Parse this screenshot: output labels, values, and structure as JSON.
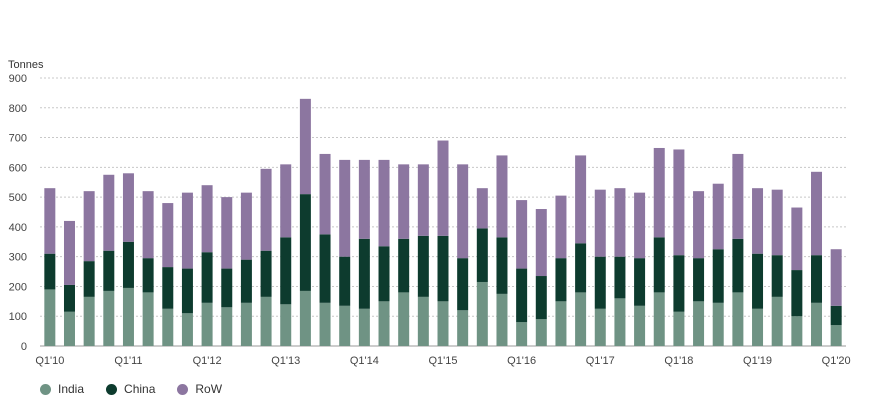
{
  "chart_data": {
    "type": "bar",
    "stacked": true,
    "ylabel": "Tonnes",
    "ylim": [
      0,
      900
    ],
    "yticks": [
      0,
      100,
      200,
      300,
      400,
      500,
      600,
      700,
      800,
      900
    ],
    "grid": true,
    "legend_position": "bottom-left",
    "categories": [
      "Q1'10",
      "Q2'10",
      "Q3'10",
      "Q4'10",
      "Q1'11",
      "Q2'11",
      "Q3'11",
      "Q4'11",
      "Q1'12",
      "Q2'12",
      "Q3'12",
      "Q4'12",
      "Q1'13",
      "Q2'13",
      "Q3'13",
      "Q4'13",
      "Q1'14",
      "Q2'14",
      "Q3'14",
      "Q4'14",
      "Q1'15",
      "Q2'15",
      "Q3'15",
      "Q4'15",
      "Q1'16",
      "Q2'16",
      "Q3'16",
      "Q4'16",
      "Q1'17",
      "Q2'17",
      "Q3'17",
      "Q4'17",
      "Q1'18",
      "Q2'18",
      "Q3'18",
      "Q4'18",
      "Q1'19",
      "Q2'19",
      "Q3'19",
      "Q4'19",
      "Q1'20"
    ],
    "x_tick_labels": [
      "Q1'10",
      "Q1'11",
      "Q1'12",
      "Q1'13",
      "Q1'14",
      "Q1'15",
      "Q1'16",
      "Q1'17",
      "Q1'18",
      "Q1'19",
      "Q1'20"
    ],
    "series": [
      {
        "name": "India",
        "color": "#6f9384",
        "values": [
          190,
          115,
          165,
          185,
          195,
          180,
          125,
          110,
          145,
          130,
          145,
          165,
          140,
          185,
          145,
          135,
          125,
          150,
          180,
          165,
          150,
          120,
          215,
          175,
          80,
          90,
          150,
          180,
          125,
          160,
          135,
          180,
          115,
          150,
          145,
          180,
          125,
          165,
          100,
          145,
          70
        ]
      },
      {
        "name": "China",
        "color": "#0d3b2e",
        "values": [
          120,
          90,
          120,
          135,
          155,
          115,
          140,
          150,
          170,
          130,
          145,
          155,
          225,
          325,
          230,
          165,
          235,
          185,
          180,
          205,
          220,
          175,
          180,
          190,
          180,
          145,
          145,
          165,
          175,
          140,
          160,
          185,
          190,
          145,
          180,
          180,
          185,
          140,
          155,
          160,
          65
        ]
      },
      {
        "name": "RoW",
        "color": "#8c76a0",
        "values": [
          220,
          215,
          235,
          255,
          230,
          225,
          215,
          255,
          225,
          240,
          225,
          275,
          245,
          320,
          270,
          325,
          265,
          290,
          250,
          240,
          320,
          315,
          135,
          275,
          230,
          225,
          210,
          295,
          225,
          230,
          220,
          300,
          355,
          225,
          220,
          285,
          220,
          220,
          210,
          280,
          190
        ]
      }
    ]
  }
}
